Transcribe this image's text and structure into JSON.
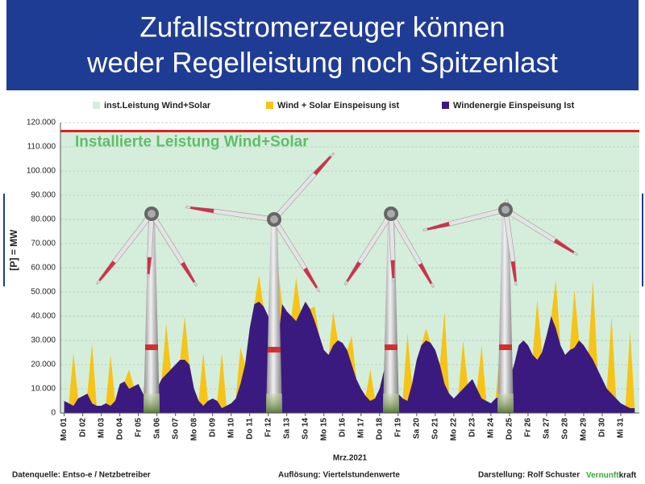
{
  "chart_data": {
    "type": "area",
    "title": [
      "Zufallsstromerzeuger können",
      "weder Regelleistung noch Spitzenlast"
    ],
    "y_label": "[P] =  MW",
    "x_label": "Mrz.2021",
    "capacity": {
      "name": "inst.Leistung Wind+Solar",
      "value": 116500,
      "fill": "#d5eedb",
      "line_color": "#e01e1e",
      "label": "Installierte Leistung Wind+Solar",
      "label_color": "#5cbf6a"
    },
    "x": [
      1,
      1.25,
      1.5,
      1.75,
      2,
      2.25,
      2.5,
      2.75,
      3,
      3.25,
      3.5,
      3.75,
      4,
      4.25,
      4.5,
      4.75,
      5,
      5.25,
      5.5,
      5.75,
      6,
      6.25,
      6.5,
      6.75,
      7,
      7.25,
      7.5,
      7.75,
      8,
      8.25,
      8.5,
      8.75,
      9,
      9.25,
      9.5,
      9.75,
      10,
      10.25,
      10.5,
      10.75,
      11,
      11.25,
      11.5,
      11.75,
      12,
      12.25,
      12.5,
      12.75,
      13,
      13.25,
      13.5,
      13.75,
      14,
      14.25,
      14.5,
      14.75,
      15,
      15.25,
      15.5,
      15.75,
      16,
      16.25,
      16.5,
      16.75,
      17,
      17.25,
      17.5,
      17.75,
      18,
      18.25,
      18.5,
      18.75,
      19,
      19.25,
      19.5,
      19.75,
      20,
      20.25,
      20.5,
      20.75,
      21,
      21.25,
      21.5,
      21.75,
      22,
      22.25,
      22.5,
      22.75,
      23,
      23.25,
      23.5,
      23.75,
      24,
      24.25,
      24.5,
      24.75,
      25,
      25.25,
      25.5,
      25.75,
      26,
      26.25,
      26.5,
      26.75,
      27,
      27.25,
      27.5,
      27.75,
      28,
      28.25,
      28.5,
      28.75,
      29,
      29.25,
      29.5,
      29.75,
      30,
      30.25,
      30.5,
      30.75,
      31,
      31.25,
      31.5,
      31.75
    ],
    "series": [
      {
        "name": "Wind + Solar Einspeisung ist",
        "color": "#f6c416",
        "values": [
          5000,
          4000,
          25000,
          6000,
          7000,
          8000,
          29000,
          3000,
          3000,
          4000,
          24000,
          5000,
          12000,
          13000,
          18000,
          11000,
          12000,
          8000,
          23000,
          7000,
          10000,
          14000,
          37000,
          18000,
          20000,
          22000,
          40000,
          20000,
          10000,
          5000,
          25000,
          5000,
          6000,
          5000,
          25000,
          3000,
          4000,
          6000,
          27000,
          20000,
          35000,
          45000,
          57000,
          44000,
          40000,
          30000,
          62000,
          45000,
          42000,
          40000,
          56000,
          42000,
          46000,
          43000,
          44000,
          32000,
          26000,
          24000,
          42000,
          30000,
          29000,
          26000,
          32000,
          14000,
          10000,
          7000,
          18000,
          6000,
          10000,
          18000,
          23000,
          9000,
          8000,
          6000,
          33000,
          12000,
          22000,
          28000,
          35000,
          29000,
          26000,
          20000,
          42000,
          8000,
          6000,
          8000,
          30000,
          12000,
          14000,
          10000,
          28000,
          5000,
          4000,
          6000,
          27000,
          10000,
          14000,
          20000,
          20000,
          30000,
          28000,
          24000,
          47000,
          25000,
          32000,
          40000,
          55000,
          28000,
          24000,
          26000,
          51000,
          30000,
          28000,
          25000,
          55000,
          18000,
          14000,
          10000,
          40000,
          6000,
          4000,
          3000,
          34000,
          2000
        ]
      },
      {
        "name": "Windenergie Einspeisung Ist",
        "color": "#3b1a80",
        "values": [
          5000,
          4000,
          3000,
          6000,
          7000,
          8000,
          4000,
          3000,
          3000,
          4000,
          3000,
          5000,
          12000,
          13000,
          10000,
          11000,
          12000,
          8000,
          5000,
          7000,
          10000,
          14000,
          16000,
          18000,
          20000,
          22000,
          22000,
          20000,
          10000,
          5000,
          3000,
          5000,
          6000,
          5000,
          2000,
          3000,
          4000,
          6000,
          12000,
          20000,
          35000,
          45000,
          46000,
          44000,
          40000,
          30000,
          28000,
          45000,
          42000,
          40000,
          38000,
          42000,
          46000,
          43000,
          38000,
          32000,
          26000,
          24000,
          28000,
          30000,
          29000,
          26000,
          20000,
          14000,
          10000,
          7000,
          5000,
          6000,
          10000,
          18000,
          14000,
          9000,
          8000,
          6000,
          5000,
          12000,
          22000,
          28000,
          30000,
          29000,
          26000,
          20000,
          12000,
          8000,
          6000,
          8000,
          10000,
          12000,
          14000,
          10000,
          6000,
          5000,
          4000,
          6000,
          7000,
          10000,
          14000,
          20000,
          28000,
          30000,
          28000,
          24000,
          22000,
          25000,
          32000,
          40000,
          35000,
          28000,
          24000,
          26000,
          27000,
          30000,
          28000,
          25000,
          22000,
          18000,
          14000,
          10000,
          8000,
          6000,
          4000,
          3000,
          2000,
          2000
        ]
      }
    ],
    "xlim": [
      0.8,
      32
    ],
    "xticks": [
      {
        "value": 1,
        "label": "Mo 01"
      },
      {
        "value": 2,
        "label": "Di 02"
      },
      {
        "value": 3,
        "label": "Mi 03"
      },
      {
        "value": 4,
        "label": "Do 04"
      },
      {
        "value": 5,
        "label": "Fr 05"
      },
      {
        "value": 6,
        "label": "Sa 06"
      },
      {
        "value": 7,
        "label": "So 07"
      },
      {
        "value": 8,
        "label": "Mo 08"
      },
      {
        "value": 9,
        "label": "Di 09"
      },
      {
        "value": 10,
        "label": "Mi 10"
      },
      {
        "value": 11,
        "label": "Do 11"
      },
      {
        "value": 12,
        "label": "Fr 12"
      },
      {
        "value": 13,
        "label": "Sa 13"
      },
      {
        "value": 14,
        "label": "So 14"
      },
      {
        "value": 15,
        "label": "Mo 15"
      },
      {
        "value": 16,
        "label": "Di 16"
      },
      {
        "value": 17,
        "label": "Mi 17"
      },
      {
        "value": 18,
        "label": "Do 18"
      },
      {
        "value": 19,
        "label": "Fr 19"
      },
      {
        "value": 20,
        "label": "Sa 20"
      },
      {
        "value": 21,
        "label": "So 21"
      },
      {
        "value": 22,
        "label": "Mo 22"
      },
      {
        "value": 23,
        "label": "Di 23"
      },
      {
        "value": 24,
        "label": "Mi 24"
      },
      {
        "value": 25,
        "label": "Do 25"
      },
      {
        "value": 26,
        "label": "Fr 26"
      },
      {
        "value": 27,
        "label": "Sa 27"
      },
      {
        "value": 28,
        "label": "So 28"
      },
      {
        "value": 29,
        "label": "Mo 29"
      },
      {
        "value": 30,
        "label": "Di 30"
      },
      {
        "value": 31,
        "label": "Mi 31"
      }
    ],
    "ylim": [
      0,
      120000
    ],
    "yticks": [
      0,
      {
        "value": 10000,
        "label": "10.000"
      },
      {
        "value": 20000,
        "label": "20.000"
      },
      {
        "value": 30000,
        "label": "30.000"
      },
      {
        "value": 40000,
        "label": "40.000"
      },
      {
        "value": 50000,
        "label": "50.000"
      },
      {
        "value": 60000,
        "label": "60.000"
      },
      {
        "value": 70000,
        "label": "70.000"
      },
      {
        "value": 80000,
        "label": "80.000"
      },
      {
        "value": 90000,
        "label": "90.000"
      },
      {
        "value": 100000,
        "label": "100.000"
      },
      {
        "value": 110000,
        "label": "110.000"
      },
      {
        "value": 120000,
        "label": "120.000"
      }
    ],
    "grid": true
  },
  "footer": {
    "source": "Datenquelle: Entso-e  / Netzbetreiber",
    "resolution": "Auflösung: Viertelstundenwerte",
    "author": "Darstellung:  Rolf Schuster",
    "logo": [
      "Vernunft",
      "kraft"
    ]
  }
}
